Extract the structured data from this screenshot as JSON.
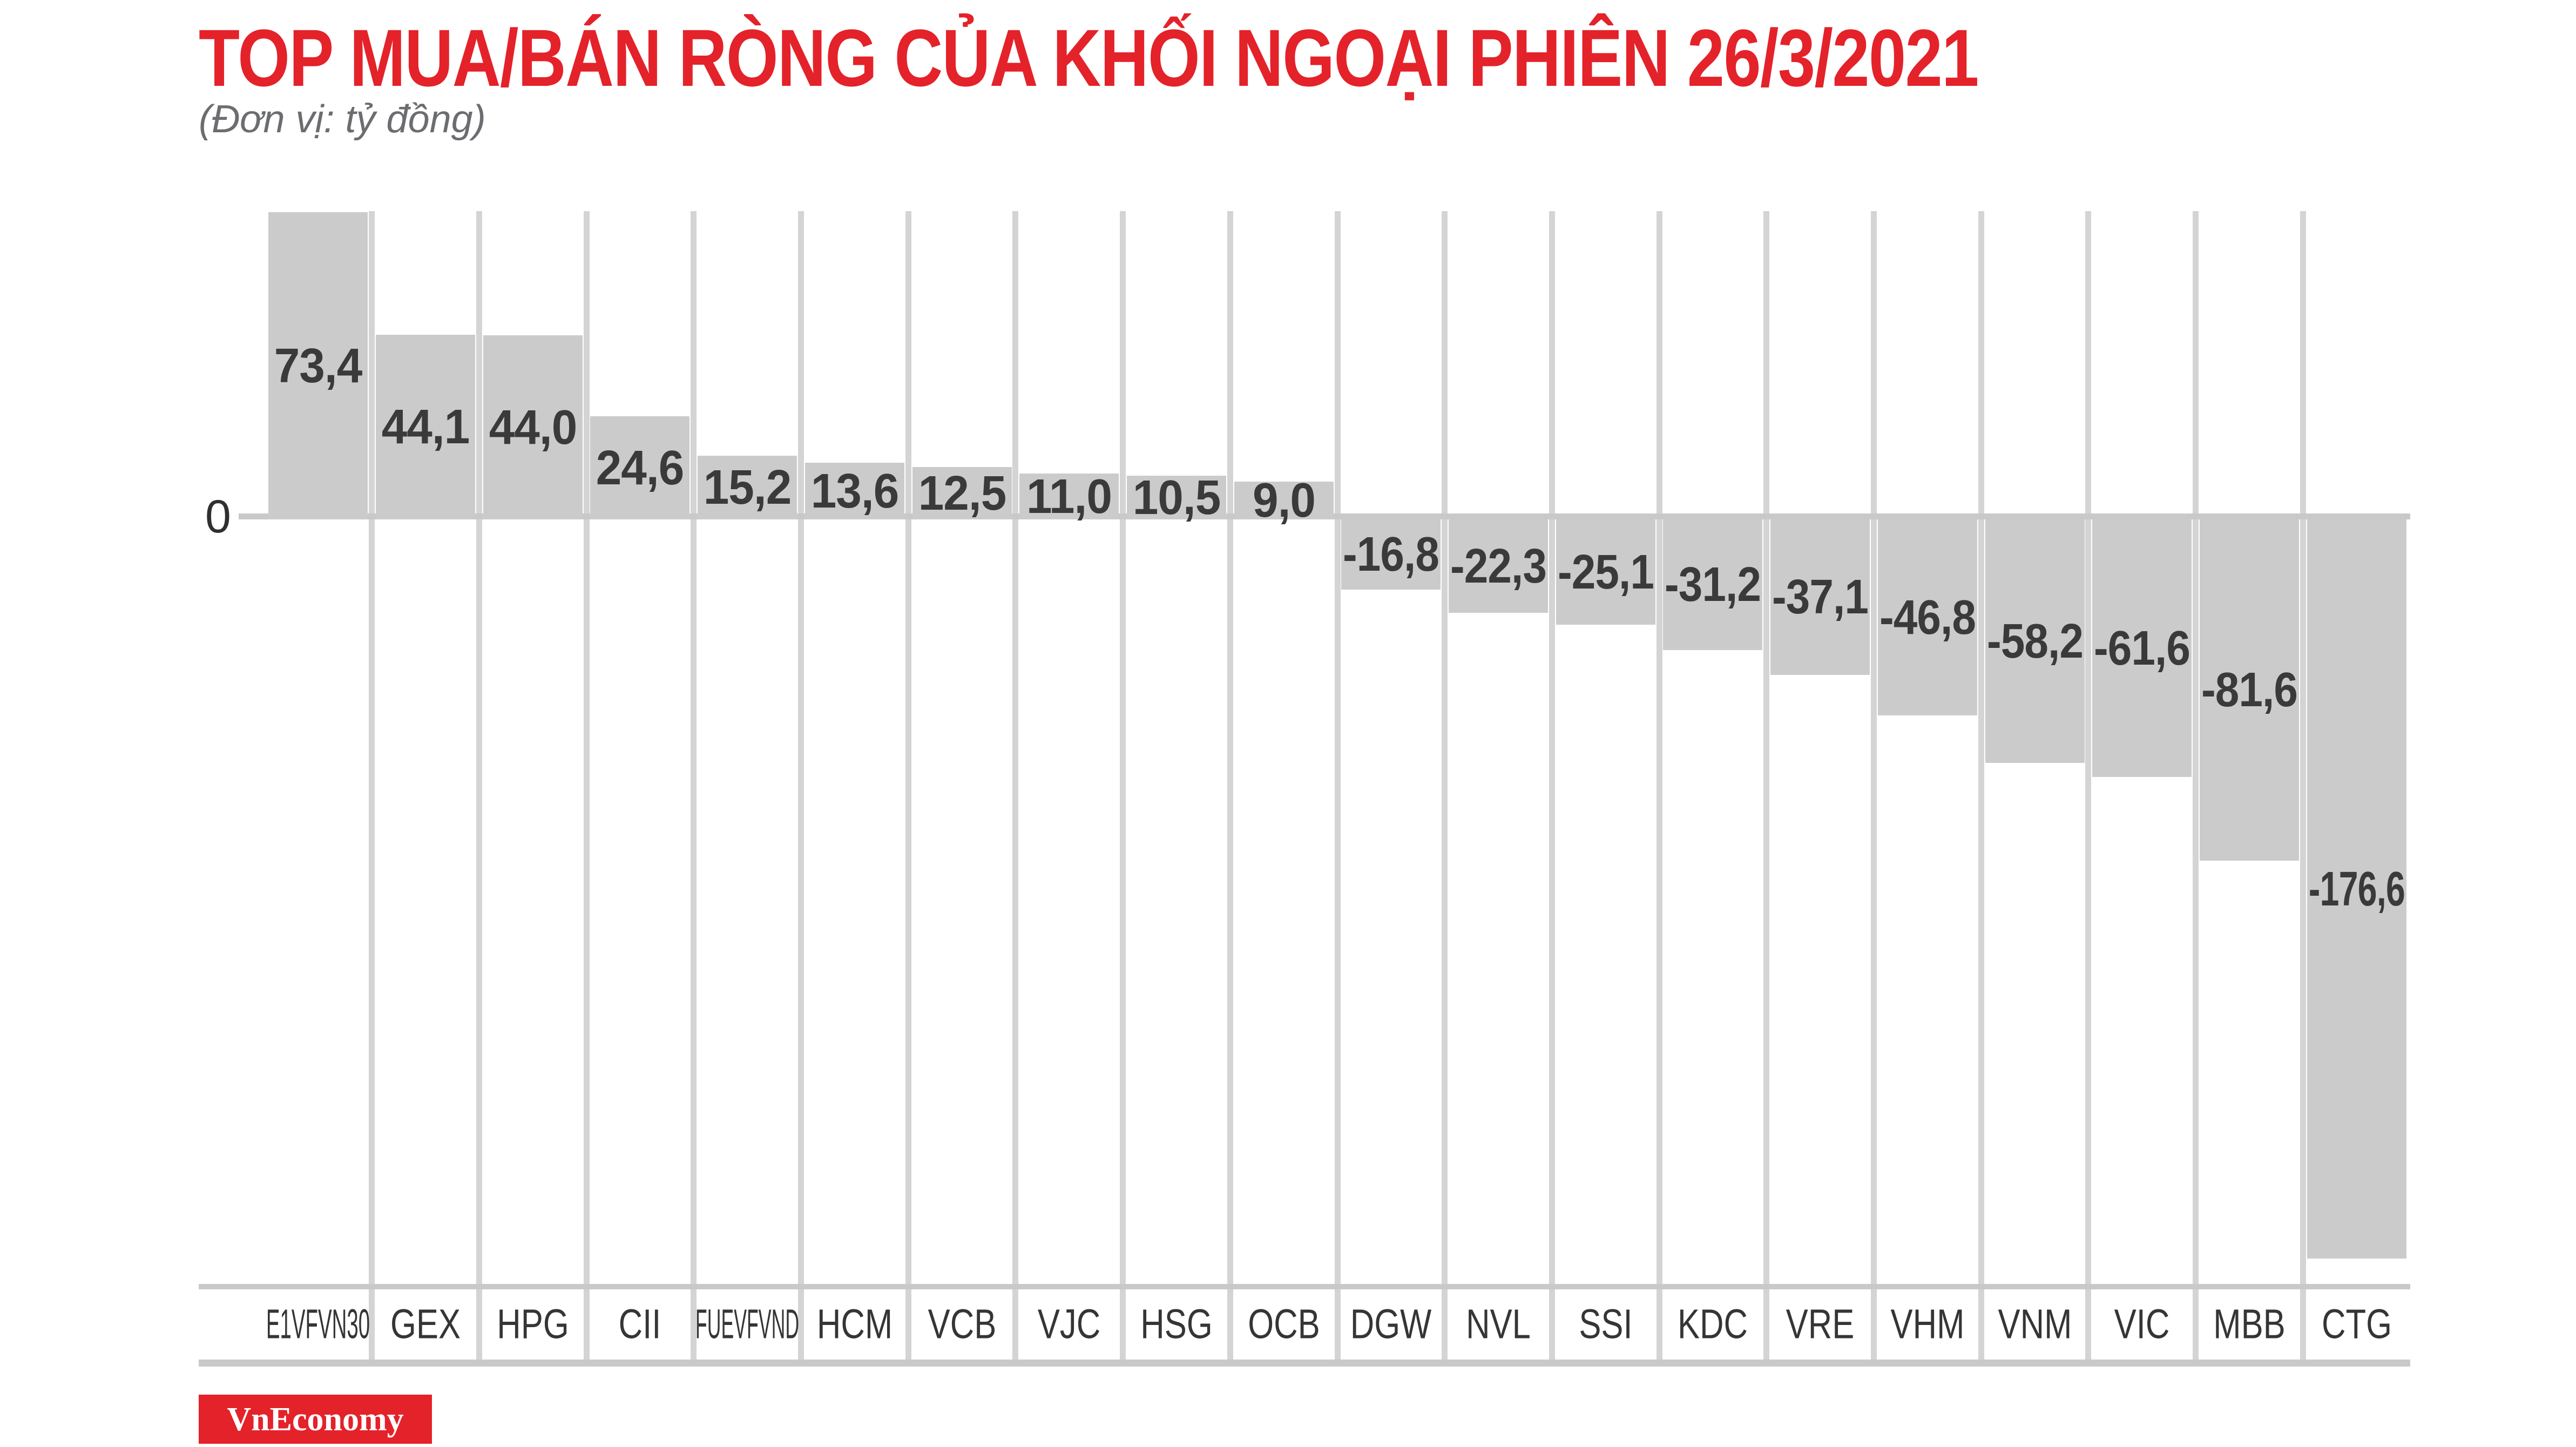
{
  "title": {
    "text": "TOP MUA/BÁN RÒNG CỦA KHỐI NGOẠI PHIÊN 26/3/2021",
    "color": "#e4222a"
  },
  "subtitle": {
    "text": "(Đơn vị: tỷ đồng)",
    "color": "#6c6d70"
  },
  "axis": {
    "zero_label": "0",
    "label_color": "#2f2f2f"
  },
  "branding": {
    "logo_text": "VnEconomy",
    "bg_color": "#e4222a",
    "text_color": "#ffffff"
  },
  "style": {
    "bar_color": "#cbcbcb",
    "gridline_color": "#d4d4d4",
    "line_color": "#c9c9c9",
    "value_label_color": "#3a3a3a",
    "ticker_label_color": "#353535"
  },
  "chart_data": {
    "type": "bar",
    "title": "TOP MUA/BÁN RÒNG CỦA KHỐI NGOẠI PHIÊN 26/3/2021",
    "subtitle": "(Đơn vị: tỷ đồng)",
    "xlabel": "",
    "ylabel": "tỷ đồng",
    "ylim": [
      -185,
      75
    ],
    "grid": "vertical-between-categories",
    "legend": false,
    "categories": [
      "E1VFVN30",
      "GEX",
      "HPG",
      "CII",
      "FUEVFVND",
      "HCM",
      "VCB",
      "VJC",
      "HSG",
      "OCB",
      "DGW",
      "NVL",
      "SSI",
      "KDC",
      "VRE",
      "VHM",
      "VNM",
      "VIC",
      "MBB",
      "CTG"
    ],
    "values": [
      73.4,
      44.1,
      44.0,
      24.6,
      15.2,
      13.6,
      12.5,
      11.0,
      10.5,
      9.0,
      -16.8,
      -22.3,
      -25.1,
      -31.2,
      -37.1,
      -46.8,
      -58.2,
      -61.6,
      -81.6,
      -176.6
    ],
    "value_labels": [
      "73,4",
      "44,1",
      "44,0",
      "24,6",
      "15,2",
      "13,6",
      "12,5",
      "11,0",
      "10,5",
      "9,0",
      "-16,8",
      "-22,3",
      "-25,1",
      "-31,2",
      "-37,1",
      "-46,8",
      "-58,2",
      "-61,6",
      "-81,6",
      "-176,6"
    ]
  }
}
